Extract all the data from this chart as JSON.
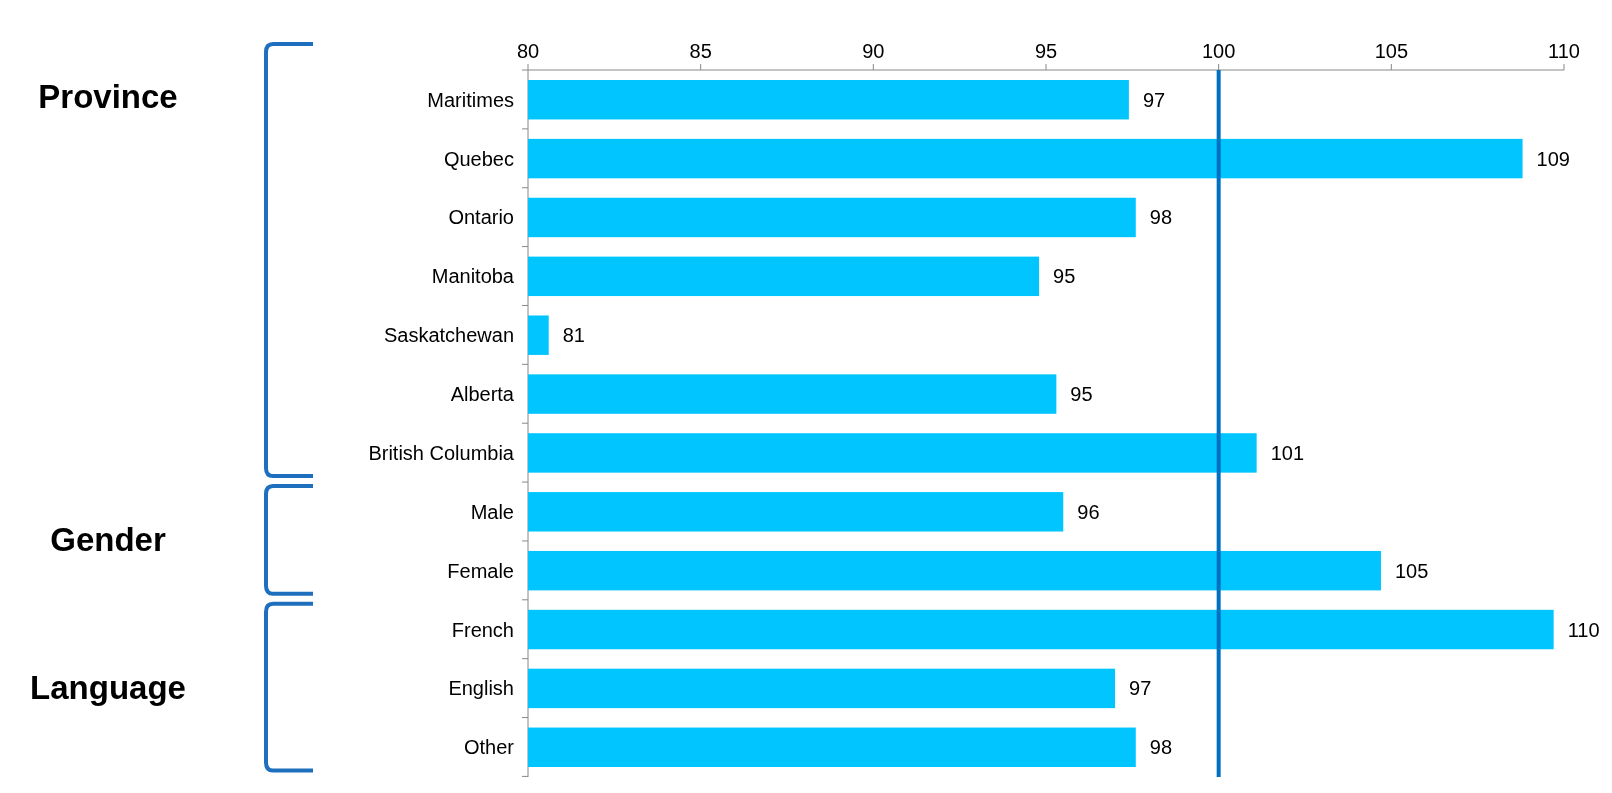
{
  "chart_data": {
    "type": "bar",
    "orientation": "horizontal",
    "categories": [
      "Maritimes",
      "Quebec",
      "Ontario",
      "Manitoba",
      "Saskatchewan",
      "Alberta",
      "British Columbia",
      "Male",
      "Female",
      "French",
      "English",
      "Other"
    ],
    "values": [
      97.4,
      108.8,
      97.6,
      94.8,
      80.6,
      95.3,
      101.1,
      95.5,
      104.7,
      109.7,
      97.0,
      97.6
    ],
    "value_labels": [
      "97",
      "109",
      "98",
      "95",
      "81",
      "95",
      "101",
      "96",
      "105",
      "110",
      "97",
      "98"
    ],
    "color": "#00c5ff",
    "xlim": [
      80,
      110
    ],
    "xticks": [
      80,
      85,
      90,
      95,
      100,
      105,
      110
    ],
    "ref_lines": [
      {
        "axis": "x",
        "value": 100,
        "color": "#0070c0"
      }
    ],
    "annotations": [
      "Province",
      "Gender",
      "Language"
    ]
  }
}
